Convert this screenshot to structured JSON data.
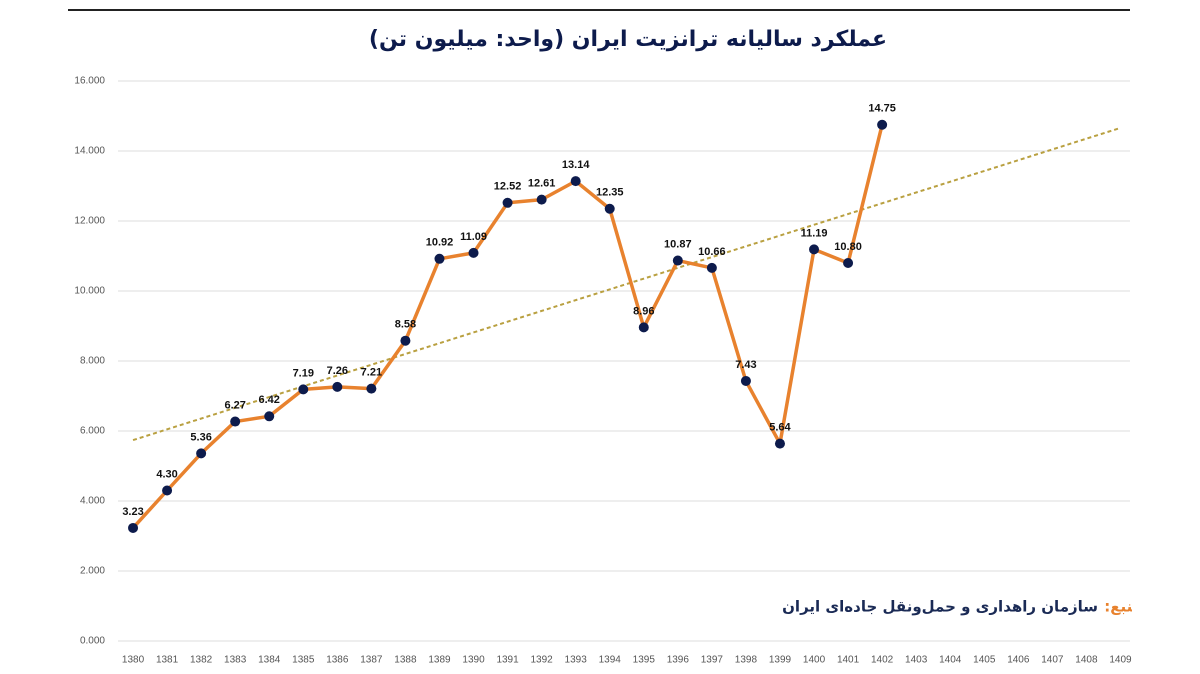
{
  "chart_data": {
    "type": "line",
    "title": "عملکرد سالیانه ترانزیت ایران (واحد: میلیون تن)",
    "source_label": "منبع:",
    "source": "سازمان راهداری و حمل‌ونقل جاده‌ای ایران",
    "categories": [
      "1380",
      "1381",
      "1382",
      "1383",
      "1384",
      "1385",
      "1386",
      "1387",
      "1388",
      "1389",
      "1390",
      "1391",
      "1392",
      "1393",
      "1394",
      "1395",
      "1396",
      "1397",
      "1398",
      "1399",
      "1400",
      "1401",
      "1402",
      "1403",
      "1404",
      "1405",
      "1406",
      "1407",
      "1408",
      "1409"
    ],
    "series": [
      {
        "color": "#e8822e",
        "marker_color": "#0d1b4c",
        "values": [
          3.23,
          4.3,
          5.36,
          6.27,
          6.42,
          7.19,
          7.26,
          7.21,
          8.58,
          10.92,
          11.09,
          12.52,
          12.61,
          13.14,
          12.35,
          8.96,
          10.87,
          10.66,
          7.43,
          5.64,
          11.19,
          10.8,
          14.75,
          null,
          null,
          null,
          null,
          null,
          null,
          null
        ],
        "value_labels": [
          "3.23",
          "4.30",
          "5.36",
          "6.27",
          "6.42",
          "7.19",
          "7.26",
          "7.21",
          "8.58",
          "10.92",
          "11.09",
          "12.52",
          "12.61",
          "13.14",
          "12.35",
          "8.96",
          "10.87",
          "10.66",
          "7.43",
          "5.64",
          "11.19",
          "10.80",
          "14.75",
          null,
          null,
          null,
          null,
          null,
          null,
          null
        ]
      }
    ],
    "trendline": {
      "color": "#b9a040",
      "values": [
        5.74,
        14.66
      ]
    },
    "ylim": [
      0,
      16
    ],
    "yticks": [
      {
        "value": 0,
        "label": "0.000"
      },
      {
        "value": 2,
        "label": "2.000"
      },
      {
        "value": 4,
        "label": "4.000"
      },
      {
        "value": 6,
        "label": "6.000"
      },
      {
        "value": 8,
        "label": "8.000"
      },
      {
        "value": 10,
        "label": "10.000"
      },
      {
        "value": 12,
        "label": "12.000"
      },
      {
        "value": 14,
        "label": "14.000"
      },
      {
        "value": 16,
        "label": "16.000"
      }
    ],
    "grid": true
  }
}
